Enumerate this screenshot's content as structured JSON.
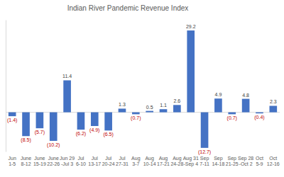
{
  "chart_data": {
    "type": "bar",
    "title": "Indian River Pandemic Revenue Index",
    "categories": [
      "Jun\n1-5",
      "June\n8-12",
      "June\n15-19",
      "June\n22-26",
      "Jun 29\n-Jul 3",
      "Jul\n6-10",
      "Jul\n13-17",
      "Jul\n20-24",
      "Jul\n27-31",
      "Aug\n3-7",
      "Aug\n10-14",
      "Aug\n17-21",
      "Aug\n24-28",
      "Aug 31\n-Sep 4",
      "Sep\n7-11",
      "Sep\n14-18",
      "Sep\n21-25",
      "Sep 28\n-Oct 2",
      "Oct\n5-9",
      "Oct\n12-16"
    ],
    "values": [
      -1.4,
      -8.5,
      -5.7,
      -10.2,
      11.4,
      -6.2,
      -4.9,
      -6.5,
      1.3,
      -0.7,
      0.5,
      1.1,
      2.6,
      29.2,
      -12.7,
      4.9,
      -0.7,
      4.8,
      -0.4,
      2.3
    ],
    "value_labels": [
      "(1.4)",
      "(8.5)",
      "(5.7)",
      "(10.2)",
      "11.4",
      "(6.2)",
      "(4.9)",
      "(6.5)",
      "1.3",
      "(0.7)",
      "0.5",
      "1.1",
      "2.6",
      "29.2",
      "(12.7)",
      "4.9",
      "(0.7)",
      "4.8",
      "(0.4)",
      "2.3"
    ],
    "color": "#4472c4",
    "ylim": [
      -14,
      33
    ],
    "yticks": [],
    "grid": false,
    "data_labels": true,
    "tick_labels": "x"
  }
}
